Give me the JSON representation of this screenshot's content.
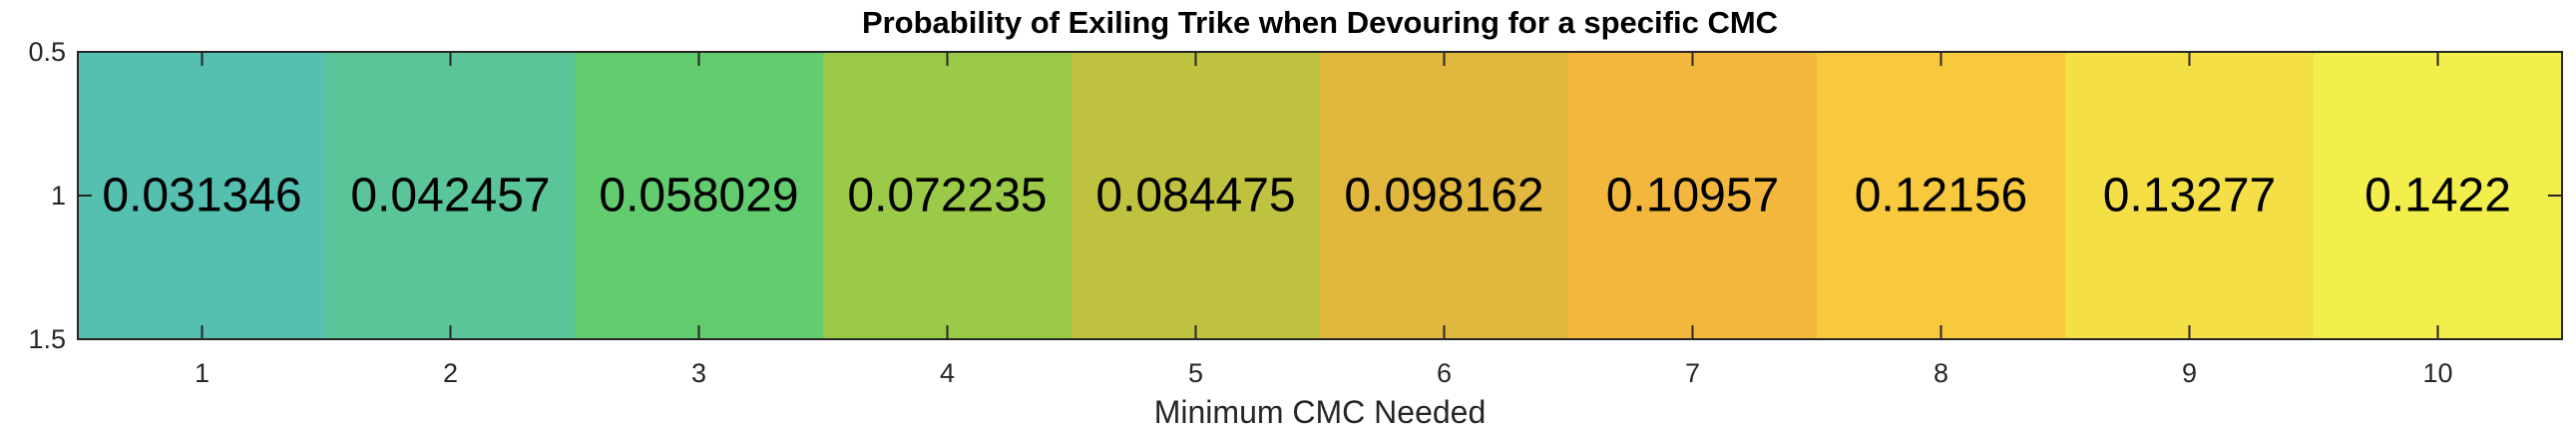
{
  "chart_data": {
    "type": "heatmap",
    "title": "Probability of Exiling Trike when Devouring for a specific CMC",
    "xlabel": "Minimum CMC Needed",
    "ylabel": "",
    "x": [
      1,
      2,
      3,
      4,
      5,
      6,
      7,
      8,
      9,
      10
    ],
    "y": [
      1
    ],
    "values": [
      [
        0.031346,
        0.042457,
        0.058029,
        0.072235,
        0.084475,
        0.098162,
        0.10957,
        0.12156,
        0.13277,
        0.1422
      ]
    ],
    "cell_labels": [
      "0.031346",
      "0.042457",
      "0.058029",
      "0.072235",
      "0.084475",
      "0.098162",
      "0.10957",
      "0.12156",
      "0.13277",
      "0.1422"
    ],
    "xlim": [
      0.5,
      10.5
    ],
    "ylim": [
      0.5,
      1.5
    ],
    "xticks": [
      "1",
      "2",
      "3",
      "4",
      "5",
      "6",
      "7",
      "8",
      "9",
      "10"
    ],
    "yticks": [
      "0.5",
      "1",
      "1.5"
    ],
    "cell_colors": [
      "#55bfb0",
      "#5ac598",
      "#62cc6e",
      "#9bca48",
      "#bfc23e",
      "#e1b83d",
      "#f4b73d",
      "#f8c83d",
      "#f5df46",
      "#f2ef4c"
    ],
    "colormap": "parula",
    "grid": false,
    "legend": "none"
  }
}
